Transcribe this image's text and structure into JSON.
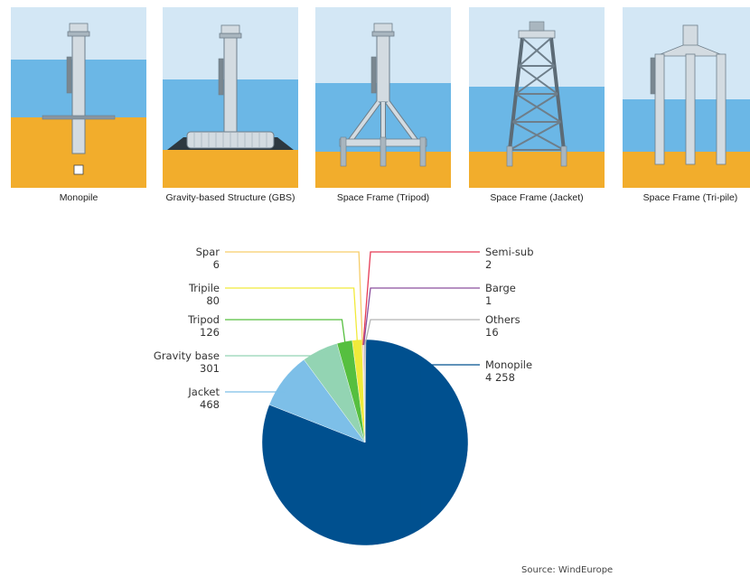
{
  "foundation_panels": [
    {
      "label": "Monopile",
      "type": "monopile"
    },
    {
      "label": "Gravity-based Structure (GBS)",
      "type": "gbs"
    },
    {
      "label": "Space Frame (Tripod)",
      "type": "tripod"
    },
    {
      "label": "Space Frame (Jacket)",
      "type": "jacket"
    },
    {
      "label": "Space Frame (Tri-pile)",
      "type": "tripile"
    }
  ],
  "chart_data": {
    "type": "pie",
    "slices": [
      {
        "name": "Monopile",
        "value": 4258,
        "value_text": "4 258",
        "color": "#00508f"
      },
      {
        "name": "Jacket",
        "value": 468,
        "value_text": "468",
        "color": "#7dbfe8"
      },
      {
        "name": "Gravity base",
        "value": 301,
        "value_text": "301",
        "color": "#93d4b3"
      },
      {
        "name": "Tripod",
        "value": 126,
        "value_text": "126",
        "color": "#56bf3f"
      },
      {
        "name": "Tripile",
        "value": 80,
        "value_text": "80",
        "color": "#f1ea3a"
      },
      {
        "name": "Spar",
        "value": 6,
        "value_text": "6",
        "color": "#f6cd6a"
      },
      {
        "name": "Semi-sub",
        "value": 2,
        "value_text": "2",
        "color": "#e53a54"
      },
      {
        "name": "Barge",
        "value": 1,
        "value_text": "1",
        "color": "#8a4f9e"
      },
      {
        "name": "Others",
        "value": 16,
        "value_text": "16",
        "color": "#b3b3b3"
      }
    ],
    "source": "Source: WindEurope"
  }
}
